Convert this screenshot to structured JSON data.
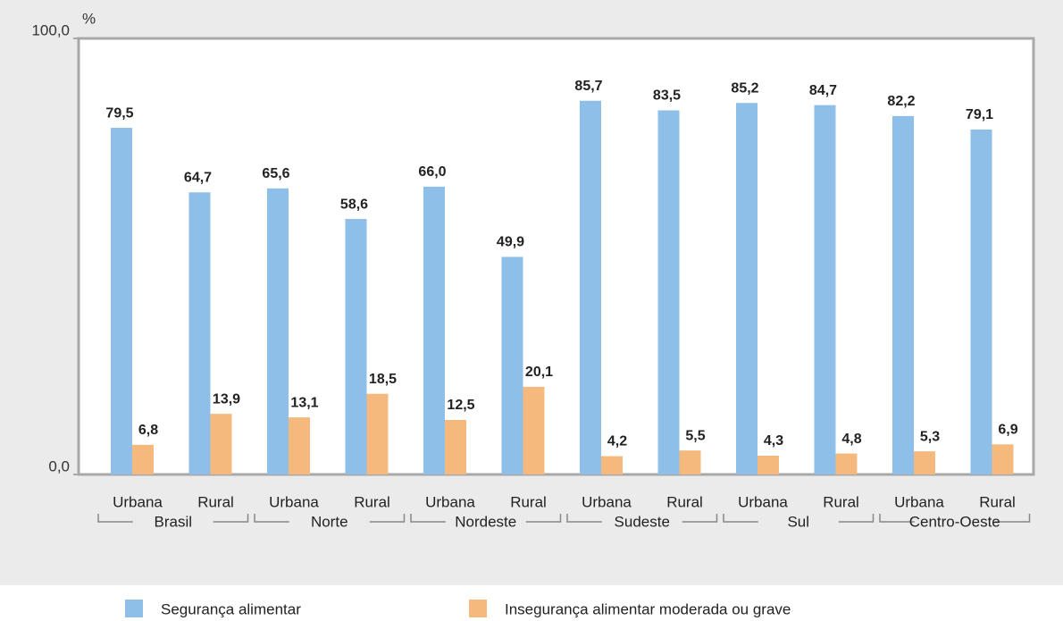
{
  "chart_data": {
    "type": "bar",
    "y_unit": "%",
    "categories": [
      "Urbana",
      "Rural",
      "Urbana",
      "Rural",
      "Urbana",
      "Rural",
      "Urbana",
      "Rural",
      "Urbana",
      "Rural",
      "Urbana",
      "Rural"
    ],
    "groups": [
      "Brasil",
      "Norte",
      "Nordeste",
      "Sudeste",
      "Sul",
      "Centro-Oeste"
    ],
    "series": [
      {
        "name": "Segurança alimentar",
        "color": "#8ebfe8",
        "values": [
          79.5,
          64.7,
          65.6,
          58.6,
          66.0,
          49.9,
          85.7,
          83.5,
          85.2,
          84.7,
          82.2,
          79.1
        ],
        "value_labels": [
          "79,5",
          "64,7",
          "65,6",
          "58,6",
          "66,0",
          "49,9",
          "85,7",
          "83,5",
          "85,2",
          "84,7",
          "82,2",
          "79,1"
        ]
      },
      {
        "name": "Insegurança alimentar moderada ou grave",
        "color": "#f5b97e",
        "values": [
          6.8,
          13.9,
          13.1,
          18.5,
          12.5,
          20.1,
          4.2,
          5.5,
          4.3,
          4.8,
          5.3,
          6.9
        ],
        "value_labels": [
          "6,8",
          "13,9",
          "13,1",
          "18,5",
          "12,5",
          "20,1",
          "4,2",
          "5,5",
          "4,3",
          "4,8",
          "5,3",
          "6,9"
        ]
      }
    ],
    "ylim": [
      0,
      100
    ],
    "yticks": [
      {
        "value": 0,
        "label": "0,0"
      },
      {
        "value": 100,
        "label": "100,0"
      }
    ]
  }
}
